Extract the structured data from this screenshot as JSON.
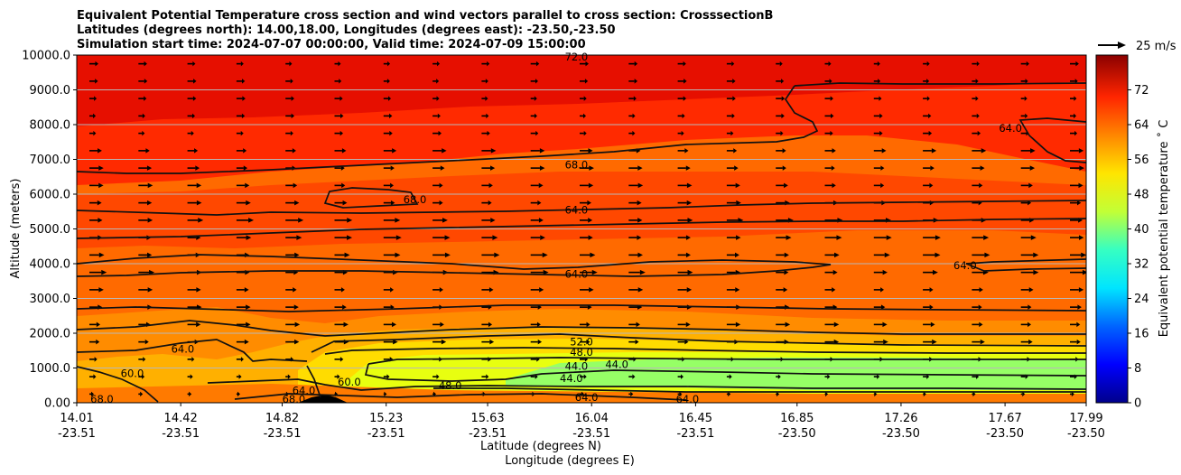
{
  "chart_data": {
    "type": "contour-cross-section",
    "title_lines": [
      "Equivalent Potential Temperature cross section and wind vectors parallel to cross section: CrosssectionB",
      "Latitudes (degrees north): 14.00,18.00, Longitudes (degrees east): -23.50,-23.50",
      "Simulation start time: 2024-07-07 00:00:00, Valid time: 2024-07-09 15:00:00"
    ],
    "ylabel": "Altitude (meters)",
    "xlabel_lat": "Latitude (degrees N)",
    "xlabel_lon": "Longitude (degrees E)",
    "ylim": [
      0,
      10000
    ],
    "y_ticks": [
      "0.00",
      "1000.0",
      "2000.0",
      "3000.0",
      "4000.0",
      "5000.0",
      "6000.0",
      "7000.0",
      "8000.0",
      "9000.0",
      "10000.0"
    ],
    "x_ticks": [
      {
        "lat": "14.01",
        "lon": "-23.51"
      },
      {
        "lat": "14.42",
        "lon": "-23.51"
      },
      {
        "lat": "14.82",
        "lon": "-23.51"
      },
      {
        "lat": "15.23",
        "lon": "-23.51"
      },
      {
        "lat": "15.63",
        "lon": "-23.51"
      },
      {
        "lat": "16.04",
        "lon": "-23.51"
      },
      {
        "lat": "16.45",
        "lon": "-23.51"
      },
      {
        "lat": "16.85",
        "lon": "-23.50"
      },
      {
        "lat": "17.26",
        "lon": "-23.50"
      },
      {
        "lat": "17.67",
        "lon": "-23.50"
      },
      {
        "lat": "17.99",
        "lon": "-23.50"
      }
    ],
    "colorbar": {
      "label": "Equivalent potential temperature $^\\circ$C",
      "label_text": "Equivalent potential temperature ˚ C",
      "range": [
        0,
        80
      ],
      "ticks": [
        "0",
        "8",
        "16",
        "24",
        "32",
        "40",
        "48",
        "56",
        "64",
        "72"
      ]
    },
    "quiver_key": "25 m/s",
    "contour_labels": [
      {
        "text": "72.0",
        "x": 0.495,
        "y": 9950
      },
      {
        "text": "68.0",
        "x": 0.495,
        "y": 6850
      },
      {
        "text": "64.0",
        "x": 0.495,
        "y": 5550
      },
      {
        "text": "68.0",
        "x": 0.335,
        "y": 5850
      },
      {
        "text": "64.0",
        "x": 0.495,
        "y": 3700
      },
      {
        "text": "64.0",
        "x": 0.925,
        "y": 7900
      },
      {
        "text": "64.0",
        "x": 0.88,
        "y": 3950
      },
      {
        "text": "52.0",
        "x": 0.5,
        "y": 1750
      },
      {
        "text": "48.0",
        "x": 0.5,
        "y": 1450
      },
      {
        "text": "44.0",
        "x": 0.495,
        "y": 1050
      },
      {
        "text": "44.0",
        "x": 0.535,
        "y": 1100
      },
      {
        "text": "44.0",
        "x": 0.49,
        "y": 700
      },
      {
        "text": "48.0",
        "x": 0.37,
        "y": 500
      },
      {
        "text": "64.0",
        "x": 0.505,
        "y": 150
      },
      {
        "text": "64.0",
        "x": 0.105,
        "y": 1550
      },
      {
        "text": "60.0",
        "x": 0.055,
        "y": 850
      },
      {
        "text": "60.0",
        "x": 0.27,
        "y": 600
      },
      {
        "text": "64.0",
        "x": 0.225,
        "y": 350
      },
      {
        "text": "68.0",
        "x": 0.025,
        "y": 100
      },
      {
        "text": "68.0",
        "x": 0.215,
        "y": 100
      },
      {
        "text": "64.0",
        "x": 0.605,
        "y": 100
      }
    ]
  }
}
